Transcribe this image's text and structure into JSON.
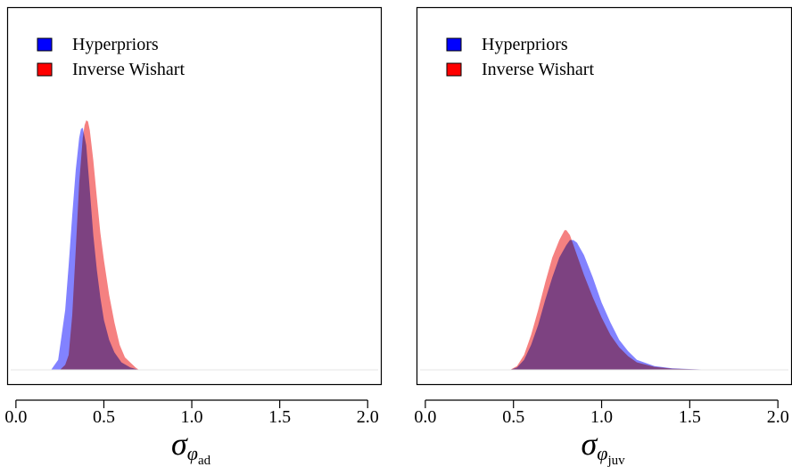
{
  "chart_data": [
    {
      "type": "area",
      "xlabel": {
        "symbol": "σ",
        "sub": "φ",
        "subsub": "ad"
      },
      "xlim": [
        -0.05,
        2.08
      ],
      "xticks": [
        0.0,
        0.5,
        1.0,
        1.5,
        2.0
      ],
      "xtick_labels": [
        "0.0",
        "0.5",
        "1.0",
        "1.5",
        "2.0"
      ],
      "ylim": [
        0,
        1.0
      ],
      "legend_position": "top-left",
      "series": [
        {
          "name": "Hyperpriors",
          "legend_color": "#0000ff",
          "fill": "#7b7bff",
          "x": [
            0.2,
            0.24,
            0.28,
            0.3,
            0.32,
            0.34,
            0.36,
            0.37,
            0.38,
            0.4,
            0.42,
            0.44,
            0.46,
            0.48,
            0.5,
            0.53,
            0.56,
            0.6,
            0.65,
            0.7
          ],
          "y": [
            0.0,
            0.04,
            0.24,
            0.42,
            0.62,
            0.8,
            0.93,
            0.965,
            0.97,
            0.9,
            0.72,
            0.54,
            0.4,
            0.29,
            0.2,
            0.12,
            0.07,
            0.03,
            0.01,
            0.0
          ]
        },
        {
          "name": "Inverse Wishart",
          "legend_color": "#ff0000",
          "fill": "#f47a7a",
          "x": [
            0.25,
            0.28,
            0.3,
            0.32,
            0.34,
            0.36,
            0.38,
            0.39,
            0.4,
            0.41,
            0.42,
            0.44,
            0.46,
            0.48,
            0.5,
            0.53,
            0.56,
            0.59,
            0.62,
            0.65,
            0.68,
            0.7
          ],
          "y": [
            0.0,
            0.02,
            0.06,
            0.22,
            0.48,
            0.75,
            0.93,
            0.98,
            1.0,
            0.995,
            0.96,
            0.84,
            0.69,
            0.55,
            0.44,
            0.3,
            0.19,
            0.1,
            0.05,
            0.03,
            0.01,
            0.0
          ]
        }
      ]
    },
    {
      "type": "area",
      "xlabel": {
        "symbol": "σ",
        "sub": "φ",
        "subsub": "juv"
      },
      "xlim": [
        -0.05,
        2.08
      ],
      "xticks": [
        0.0,
        0.5,
        1.0,
        1.5,
        2.0
      ],
      "xtick_labels": [
        "0.0",
        "0.5",
        "1.0",
        "1.5",
        "2.0"
      ],
      "ylim": [
        0,
        1.0
      ],
      "legend_position": "top-left",
      "series": [
        {
          "name": "Hyperpriors",
          "legend_color": "#0000ff",
          "fill": "#7b7bff",
          "x": [
            0.48,
            0.52,
            0.56,
            0.6,
            0.64,
            0.68,
            0.72,
            0.76,
            0.8,
            0.82,
            0.84,
            0.86,
            0.9,
            0.95,
            1.0,
            1.05,
            1.1,
            1.15,
            1.2,
            1.3,
            1.4,
            1.6,
            2.0
          ],
          "y": [
            0.0,
            0.01,
            0.04,
            0.1,
            0.18,
            0.28,
            0.37,
            0.45,
            0.5,
            0.52,
            0.52,
            0.51,
            0.46,
            0.37,
            0.27,
            0.19,
            0.12,
            0.075,
            0.04,
            0.015,
            0.006,
            0.001,
            0.0
          ]
        },
        {
          "name": "Inverse Wishart",
          "legend_color": "#ff0000",
          "fill": "#f47a7a",
          "x": [
            0.48,
            0.52,
            0.56,
            0.6,
            0.64,
            0.68,
            0.72,
            0.76,
            0.79,
            0.8,
            0.82,
            0.86,
            0.9,
            0.95,
            1.0,
            1.05,
            1.1,
            1.15,
            1.2,
            1.3,
            1.4,
            1.6,
            2.0
          ],
          "y": [
            0.0,
            0.015,
            0.06,
            0.14,
            0.24,
            0.35,
            0.45,
            0.52,
            0.56,
            0.56,
            0.54,
            0.46,
            0.38,
            0.29,
            0.21,
            0.14,
            0.09,
            0.055,
            0.03,
            0.012,
            0.005,
            0.001,
            0.0
          ]
        }
      ]
    }
  ]
}
